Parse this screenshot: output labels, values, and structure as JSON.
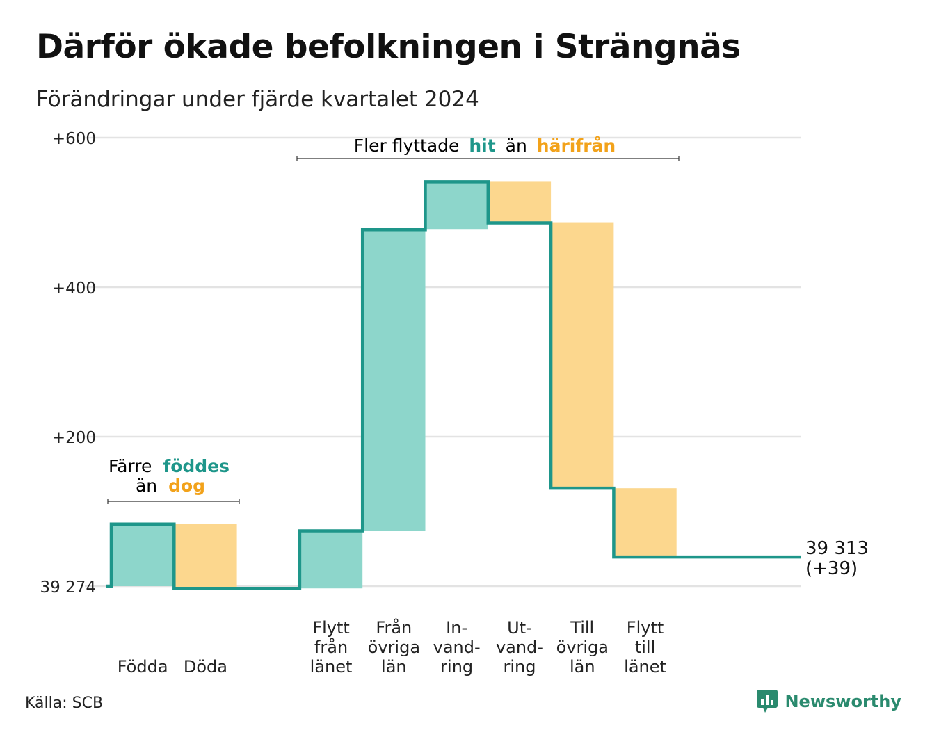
{
  "title": "Därför ökade befolkningen i Strängnäs",
  "subtitle": "Förändringar under fjärde kvartalet 2024",
  "source": "Källa: SCB",
  "brand": "Newsworthy",
  "colors": {
    "increase": "#8dd6cb",
    "decrease": "#fcd78e",
    "line": "#1e968a",
    "accent_teal": "#1e968a",
    "accent_orange": "#f2a21a",
    "grid": "#e3e3e3"
  },
  "annotations": {
    "births": {
      "line1": "Färre",
      "teal": "föddes",
      "line2_pre": "än",
      "orange": "dog"
    },
    "moves": {
      "pre": "Fler flyttade",
      "teal": "hit",
      "mid": "än",
      "orange": "härifrån"
    }
  },
  "end_label": {
    "total": "39 313",
    "change": "(+39)"
  },
  "chart_data": {
    "type": "waterfall",
    "base_population": 39274,
    "ylim": [
      -10,
      600
    ],
    "yticks": [
      {
        "value": 0,
        "label": "39 274"
      },
      {
        "value": 200,
        "label": "+200"
      },
      {
        "value": 400,
        "label": "+400"
      },
      {
        "value": 600,
        "label": "+600"
      }
    ],
    "grid": true,
    "steps": [
      {
        "label": [
          "Födda"
        ],
        "change": 83,
        "start": 0,
        "end": 83
      },
      {
        "label": [
          "Döda"
        ],
        "change": -86,
        "start": 83,
        "end": -3
      },
      {
        "label": [
          "Flytt",
          "från",
          "länet"
        ],
        "change": 77,
        "start": -3,
        "end": 74
      },
      {
        "label": [
          "Från",
          "övriga",
          "län"
        ],
        "change": 403,
        "start": 74,
        "end": 477
      },
      {
        "label": [
          "In-",
          "vand-",
          "ring"
        ],
        "change": 64,
        "start": 477,
        "end": 541
      },
      {
        "label": [
          "Ut-",
          "vand-",
          "ring"
        ],
        "change": -55,
        "start": 541,
        "end": 486
      },
      {
        "label": [
          "Till",
          "övriga",
          "län"
        ],
        "change": -355,
        "start": 486,
        "end": 131
      },
      {
        "label": [
          "Flytt",
          "till",
          "länet"
        ],
        "change": -92,
        "start": 131,
        "end": 39
      }
    ],
    "final": 39
  }
}
